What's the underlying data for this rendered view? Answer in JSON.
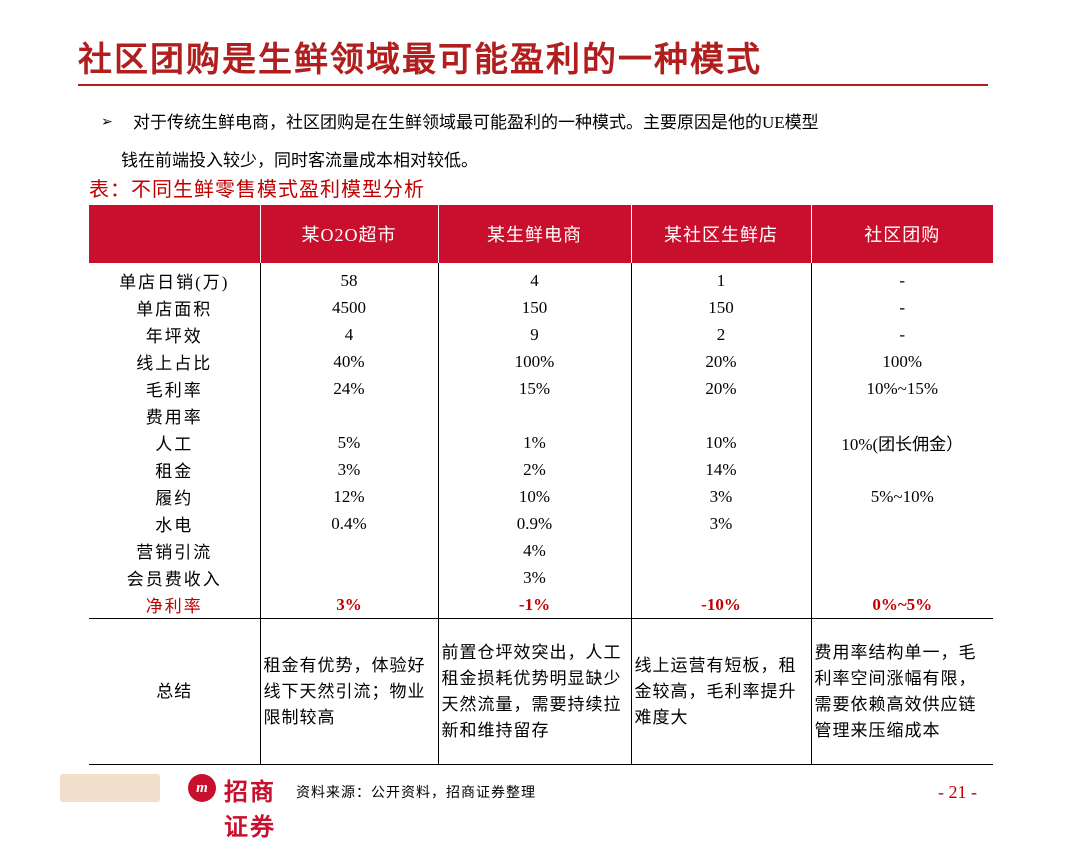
{
  "title": "社区团购是生鲜领域最可能盈利的一种模式",
  "bullet": {
    "marker": "➢",
    "line1": "对于传统生鲜电商，社区团购是在生鲜领域最可能盈利的一种模式。主要原因是他的UE模型",
    "line2": "钱在前端投入较少，同时客流量成本相对较低。"
  },
  "table_caption": "表：不同生鲜零售模式盈利模型分析",
  "table": {
    "headers": [
      "",
      "某O2O超市",
      "某生鲜电商",
      "某社区生鲜店",
      "社区团购"
    ],
    "rows": [
      {
        "label": "单店日销(万)",
        "cells": [
          "58",
          "4",
          "1",
          "-"
        ]
      },
      {
        "label": "单店面积",
        "cells": [
          "4500",
          "150",
          "150",
          "-"
        ]
      },
      {
        "label": "年坪效",
        "cells": [
          "4",
          "9",
          "2",
          "-"
        ]
      },
      {
        "label": "线上占比",
        "cells": [
          "40%",
          "100%",
          "20%",
          "100%"
        ]
      },
      {
        "label": "毛利率",
        "cells": [
          "24%",
          "15%",
          "20%",
          "10%~15%"
        ]
      },
      {
        "label": "费用率",
        "cells": [
          "",
          "",
          "",
          ""
        ]
      },
      {
        "label": "人工",
        "cells": [
          "5%",
          "1%",
          "10%",
          "10%(团长佣金）"
        ]
      },
      {
        "label": "租金",
        "cells": [
          "3%",
          "2%",
          "14%",
          ""
        ]
      },
      {
        "label": "履约",
        "cells": [
          "12%",
          "10%",
          "3%",
          "5%~10%"
        ]
      },
      {
        "label": "水电",
        "cells": [
          "0.4%",
          "0.9%",
          "3%",
          ""
        ]
      },
      {
        "label": "营销引流",
        "cells": [
          "",
          "4%",
          "",
          ""
        ]
      },
      {
        "label": "会员费收入",
        "cells": [
          "",
          "3%",
          "",
          ""
        ]
      }
    ],
    "net_row": {
      "label": "净利率",
      "cells": [
        "3%",
        "-1%",
        "-10%",
        "0%~5%"
      ]
    },
    "summary_row": {
      "label": "总结",
      "cells": [
        "租金有优势，体验好线下天然引流；物业限制较高",
        "前置仓坪效突出，人工租金损耗优势明显缺少天然流量，需要持续拉新和维持留存",
        "线上运营有短板，租金较高，毛利率提升难度大",
        "费用率结构单一，毛利率空间涨幅有限，需要依赖高效供应链管理来压缩成本"
      ]
    }
  },
  "footer": {
    "logo_badge": "m",
    "logo_text": "招商证券",
    "source": "资料来源：公开资料，招商证券整理",
    "page": "- 21 -"
  },
  "colors": {
    "accent": "#c8102e",
    "title": "#b01e1e",
    "net_row": "#c00000"
  }
}
